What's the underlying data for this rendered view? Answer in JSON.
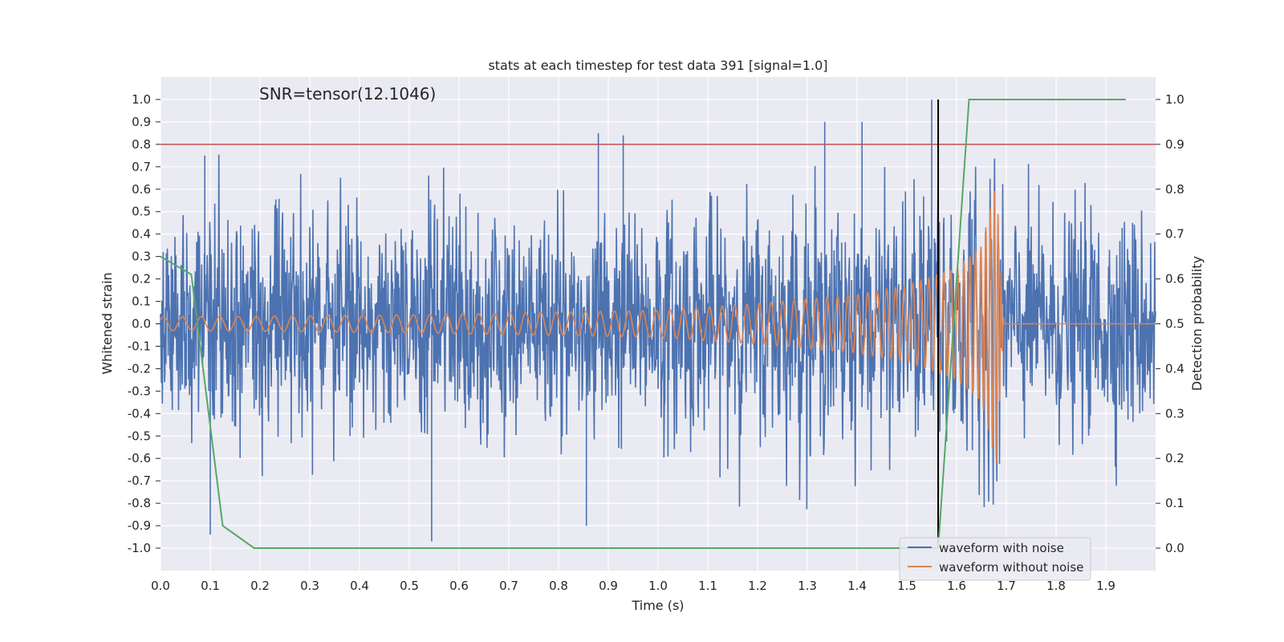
{
  "chart_data": {
    "type": "line",
    "title": "stats at each timestep for test data 391 [signal=1.0]",
    "xlabel": "Time (s)",
    "ylabel": "Whitened strain",
    "y2label": "Detection probability",
    "annotation": "SNR=tensor(12.1046)",
    "xlim": [
      0.0,
      2.0
    ],
    "ylim": [
      -1.1,
      1.1
    ],
    "y2lim": [
      -0.05,
      1.05
    ],
    "xticks": [
      "0.0",
      "0.1",
      "0.2",
      "0.3",
      "0.4",
      "0.5",
      "0.6",
      "0.7",
      "0.8",
      "0.9",
      "1.0",
      "1.1",
      "1.2",
      "1.3",
      "1.4",
      "1.5",
      "1.6",
      "1.7",
      "1.8",
      "1.9"
    ],
    "yticks": [
      "1.0",
      "0.9",
      "0.8",
      "0.7",
      "0.6",
      "0.5",
      "0.4",
      "0.3",
      "0.2",
      "0.1",
      "0.0",
      "-0.1",
      "-0.2",
      "-0.3",
      "-0.4",
      "-0.5",
      "-0.6",
      "-0.7",
      "-0.8",
      "-0.9",
      "-1.0"
    ],
    "y2ticks": [
      "1.0",
      "0.9",
      "0.8",
      "0.7",
      "0.6",
      "0.5",
      "0.4",
      "0.3",
      "0.2",
      "0.1",
      "0.0"
    ],
    "grid": true,
    "legend_placement": "lower-right",
    "threshold_line": {
      "y": 0.8,
      "color": "#c44e52"
    },
    "merger_line": {
      "x": 1.563,
      "y_range": [
        -1.0,
        1.0
      ],
      "color": "#000000"
    },
    "series": [
      {
        "name": "waveform with noise",
        "color": "#4c72b0",
        "axis": "left",
        "description": "noisy whitened strain, approx. amplitude +/-0.85, sampled densely over 0.0-2.0 s",
        "peaks": [
          {
            "x": 0.089,
            "y": 0.75
          },
          {
            "x": 0.88,
            "y": 0.85
          },
          {
            "x": 0.93,
            "y": 0.84
          },
          {
            "x": 1.335,
            "y": 0.9
          },
          {
            "x": 1.41,
            "y": 0.9
          },
          {
            "x": 1.55,
            "y": 1.0
          },
          {
            "x": 0.545,
            "y": -0.97
          },
          {
            "x": 0.1,
            "y": -0.94
          },
          {
            "x": 0.856,
            "y": -0.9
          }
        ]
      },
      {
        "name": "waveform without noise",
        "color": "#dd8452",
        "axis": "left",
        "description": "chirp signal, amplitude grows from ~0.03 to ~0.63, merger near 1.69 s, zero after 1.70 s",
        "envelope": [
          {
            "x": 0.0,
            "amp": 0.03
          },
          {
            "x": 0.5,
            "amp": 0.04
          },
          {
            "x": 1.0,
            "amp": 0.06
          },
          {
            "x": 1.2,
            "amp": 0.09
          },
          {
            "x": 1.4,
            "amp": 0.13
          },
          {
            "x": 1.5,
            "amp": 0.17
          },
          {
            "x": 1.6,
            "amp": 0.25
          },
          {
            "x": 1.65,
            "amp": 0.35
          },
          {
            "x": 1.68,
            "amp": 0.63
          },
          {
            "x": 1.695,
            "amp": 0.0
          },
          {
            "x": 2.0,
            "amp": 0.0
          }
        ]
      },
      {
        "name": "",
        "color": "#55a868",
        "axis": "right",
        "points": [
          {
            "x": 0.0,
            "y": 0.65
          },
          {
            "x": 0.062,
            "y": 0.61
          },
          {
            "x": 0.125,
            "y": 0.05
          },
          {
            "x": 0.188,
            "y": 0.0
          },
          {
            "x": 0.25,
            "y": 0.0
          },
          {
            "x": 0.5,
            "y": 0.0
          },
          {
            "x": 1.0,
            "y": 0.0
          },
          {
            "x": 1.5,
            "y": 0.0
          },
          {
            "x": 1.563,
            "y": 0.0
          },
          {
            "x": 1.625,
            "y": 1.0
          },
          {
            "x": 1.75,
            "y": 1.0
          },
          {
            "x": 1.94,
            "y": 1.0
          }
        ]
      }
    ]
  }
}
